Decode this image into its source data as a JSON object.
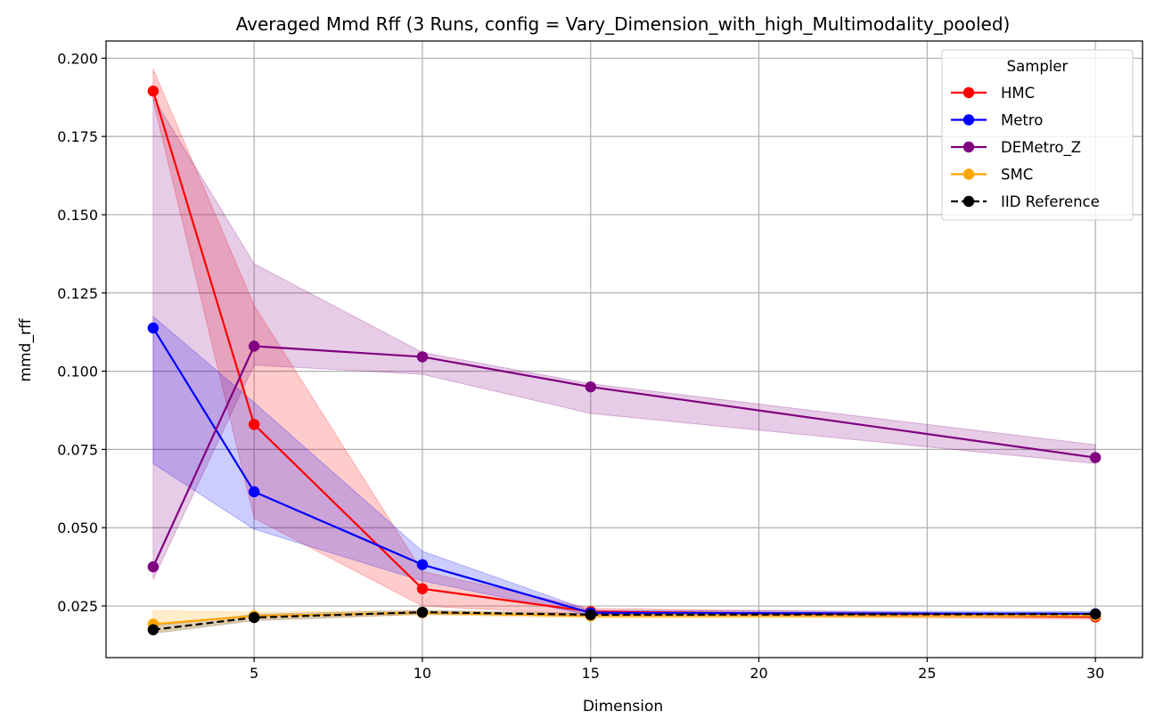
{
  "chart_data": {
    "type": "line",
    "title": "Averaged Mmd Rff (3 Runs, config = Vary_Dimension_with_high_Multimodality_pooled)",
    "xlabel": "Dimension",
    "ylabel": "mmd_rff",
    "xlim": [
      0.6,
      31.4
    ],
    "ylim": [
      0.0085,
      0.2055
    ],
    "xticks": [
      5,
      10,
      15,
      20,
      25,
      30
    ],
    "xtick_labels": [
      "5",
      "10",
      "15",
      "20",
      "25",
      "30"
    ],
    "yticks": [
      0.025,
      0.05,
      0.075,
      0.1,
      0.125,
      0.15,
      0.175,
      0.2
    ],
    "ytick_labels": [
      "0.025",
      "0.050",
      "0.075",
      "0.100",
      "0.125",
      "0.150",
      "0.175",
      "0.200"
    ],
    "grid": true,
    "legend": {
      "title": "Sampler",
      "placement": "top-right"
    },
    "x": [
      2,
      5,
      10,
      15,
      30
    ],
    "series": [
      {
        "name": "HMC",
        "color": "#ff0000",
        "style": "solid",
        "values": [
          0.1895,
          0.083,
          0.0305,
          0.0232,
          0.0215
        ],
        "band_low": [
          0.1865,
          0.053,
          0.025,
          0.0222,
          0.0208
        ],
        "band_high": [
          0.1965,
          0.121,
          0.036,
          0.0242,
          0.0222
        ],
        "band_color": "#ff0000",
        "band_opacity": 0.2
      },
      {
        "name": "Metro",
        "color": "#0000ff",
        "style": "solid",
        "values": [
          0.1138,
          0.0615,
          0.0382,
          0.0228,
          0.0225
        ],
        "band_low": [
          0.0705,
          0.0495,
          0.033,
          0.022,
          0.0218
        ],
        "band_high": [
          0.1175,
          0.09,
          0.0425,
          0.0235,
          0.0232
        ],
        "band_color": "#0000ff",
        "band_opacity": 0.2
      },
      {
        "name": "DEMetro_Z",
        "color": "#800080",
        "style": "solid",
        "values": [
          0.0375,
          0.108,
          0.1046,
          0.095,
          0.0724
        ],
        "band_low": [
          0.0335,
          0.102,
          0.099,
          0.0865,
          0.0705
        ],
        "band_high": [
          0.1875,
          0.1343,
          0.106,
          0.096,
          0.0765
        ],
        "band_color": "#800080",
        "band_opacity": 0.2
      },
      {
        "name": "SMC",
        "color": "#ffa500",
        "style": "solid",
        "values": [
          0.0192,
          0.0218,
          0.0228,
          0.0218,
          0.0219
        ],
        "band_low": [
          0.0165,
          0.0205,
          0.0222,
          0.0212,
          0.0213
        ],
        "band_high": [
          0.0235,
          0.023,
          0.0235,
          0.0225,
          0.0225
        ],
        "band_color": "#ffa500",
        "band_opacity": 0.2
      },
      {
        "name": "IID Reference",
        "color": "#000000",
        "style": "dashed",
        "values": [
          0.0174,
          0.0213,
          0.023,
          0.0222,
          0.0224
        ],
        "band_low": [
          0.0162,
          0.0203,
          0.0224,
          0.0218,
          0.022
        ],
        "band_high": [
          0.0186,
          0.0223,
          0.0236,
          0.0226,
          0.0228
        ],
        "band_color": "#000000",
        "band_opacity": 0.12
      }
    ]
  }
}
